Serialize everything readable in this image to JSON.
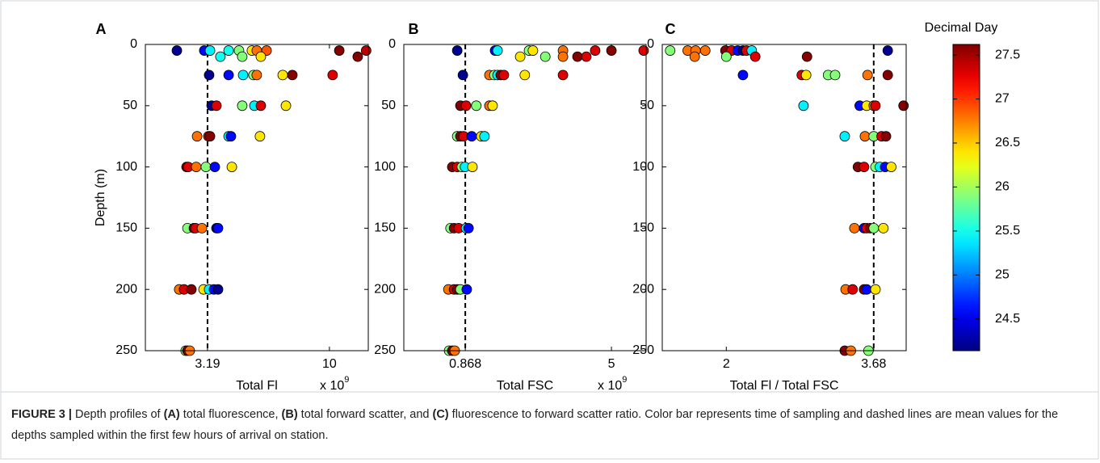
{
  "chart_data": [
    {
      "type": "scatter",
      "panel_label": "A",
      "x_label": "Total Fl",
      "x_multiplier_label": "x 10",
      "x_multiplier_exponent": "9",
      "y_label": "Depth (m)",
      "xlim": [
        -0.28,
        12.17
      ],
      "ylim": [
        0,
        250
      ],
      "y_inverted": true,
      "xticks": [
        3.19,
        10
      ],
      "yticks": [
        0,
        50,
        100,
        150,
        200,
        250
      ],
      "vline": 3.19,
      "colormap": "jet",
      "series": [
        {
          "x": [
            1.48,
            3.01,
            3.33,
            4.37,
            4.95,
            5.67,
            5.94,
            6.49,
            10.55,
            12.05,
            3.91,
            5.13,
            6.17,
            11.58,
            3.28,
            4.37,
            5.18,
            5.76,
            5.94,
            7.39,
            7.93,
            10.18,
            3.42,
            3.69,
            5.13,
            5.81,
            6.17,
            7.57,
            2.61,
            3.24,
            3.33,
            4.37,
            4.5,
            6.12,
            2.02,
            2.11,
            2.56,
            3.1,
            3.6,
            4.55,
            2.07,
            2.43,
            2.52,
            2.88,
            3.69,
            3.78,
            1.61,
            1.88,
            2.29,
            2.97,
            3.28,
            3.55,
            3.78,
            1.97,
            2.07,
            2.2
          ],
          "values": [
            5,
            5,
            5,
            5,
            5,
            5,
            5,
            5,
            5,
            5,
            10,
            10,
            10,
            10,
            25,
            25,
            25,
            25,
            25,
            25,
            25,
            25,
            50,
            50,
            50,
            50,
            50,
            50,
            75,
            75,
            75,
            75,
            75,
            75,
            100,
            100,
            100,
            100,
            100,
            100,
            150,
            150,
            150,
            150,
            150,
            150,
            200,
            200,
            200,
            200,
            200,
            200,
            200,
            250,
            250,
            250
          ],
          "c": [
            24.2,
            24.6,
            25.4,
            25.5,
            25.9,
            26.4,
            26.8,
            26.9,
            27.6,
            27.4,
            25.5,
            25.9,
            26.4,
            27.6,
            24.2,
            24.6,
            25.4,
            25.9,
            26.8,
            26.4,
            27.6,
            27.3,
            24.2,
            27.3,
            25.9,
            25.4,
            27.3,
            26.4,
            26.8,
            27.3,
            27.6,
            25.4,
            24.6,
            26.4,
            27.6,
            27.3,
            26.8,
            25.9,
            24.6,
            26.4,
            25.9,
            27.6,
            27.3,
            26.8,
            24.2,
            24.6,
            26.8,
            27.3,
            27.6,
            26.4,
            25.4,
            24.6,
            24.2,
            25.9,
            27.6,
            26.8
          ]
        }
      ]
    },
    {
      "type": "scatter",
      "panel_label": "B",
      "x_label": "Total FSC",
      "x_multiplier_label": "x 10",
      "x_multiplier_exponent": "9",
      "xlim": [
        -0.87,
        5.98
      ],
      "ylim": [
        0,
        250
      ],
      "y_inverted": true,
      "xticks": [
        0.868,
        5
      ],
      "yticks": [
        0,
        50,
        100,
        150,
        200,
        250
      ],
      "vline": 0.868,
      "colormap": "jet",
      "series": [
        {
          "x": [
            0.64,
            1.71,
            1.78,
            2.67,
            2.78,
            3.63,
            4.54,
            5.0,
            5.91,
            2.42,
            3.13,
            3.63,
            4.04,
            4.29,
            0.8,
            1.55,
            1.69,
            1.78,
            1.87,
            1.96,
            2.55,
            3.63,
            0.73,
            0.89,
            1.18,
            1.55,
            1.64,
            0.64,
            0.73,
            0.82,
            1.05,
            1.32,
            1.41,
            0.5,
            0.64,
            0.77,
            0.86,
            1.07,
            0.45,
            0.55,
            0.68,
            0.89,
            0.96,
            0.39,
            0.55,
            0.64,
            0.73,
            0.91,
            0.41,
            0.5,
            0.57
          ],
          "values": [
            5,
            5,
            5,
            5,
            5,
            5,
            5,
            5,
            5,
            10,
            10,
            10,
            10,
            10,
            25,
            25,
            25,
            25,
            25,
            25,
            25,
            25,
            50,
            50,
            50,
            50,
            50,
            75,
            75,
            75,
            75,
            75,
            75,
            100,
            100,
            100,
            100,
            100,
            150,
            150,
            150,
            150,
            150,
            200,
            200,
            200,
            200,
            200,
            250,
            250,
            250
          ],
          "c": [
            24.2,
            24.6,
            25.4,
            25.9,
            26.4,
            26.8,
            27.3,
            27.6,
            27.3,
            26.4,
            25.9,
            26.8,
            27.6,
            27.3,
            24.2,
            26.8,
            25.9,
            25.4,
            27.6,
            27.3,
            26.4,
            27.3,
            27.6,
            27.3,
            25.9,
            26.8,
            26.4,
            25.9,
            27.6,
            27.3,
            24.6,
            26.4,
            25.4,
            27.6,
            27.3,
            25.9,
            25.4,
            26.4,
            25.9,
            27.6,
            27.3,
            25.4,
            24.6,
            26.8,
            27.3,
            27.6,
            25.9,
            24.6,
            25.9,
            27.6,
            26.8
          ]
        }
      ]
    },
    {
      "type": "scatter",
      "panel_label": "C",
      "x_label": "Total Fl / Total FSC",
      "xlim": [
        1.27,
        4.05
      ],
      "ylim": [
        0,
        250
      ],
      "y_inverted": true,
      "xticks": [
        2,
        3.68
      ],
      "yticks": [
        0,
        50,
        100,
        150,
        200,
        250
      ],
      "vline": 3.68,
      "colormap": "jet",
      "series": [
        {
          "x": [
            1.36,
            1.56,
            1.76,
            1.99,
            2.06,
            2.13,
            2.19,
            2.23,
            2.29,
            1.65,
            3.84,
            1.64,
            2.0,
            2.33,
            2.92,
            2.19,
            2.86,
            2.91,
            3.16,
            3.24,
            3.61,
            3.84,
            2.88,
            3.52,
            3.6,
            3.68,
            3.7,
            4.02,
            3.35,
            3.58,
            3.68,
            3.77,
            3.82,
            3.5,
            3.57,
            3.7,
            3.75,
            3.81,
            3.88,
            3.46,
            3.57,
            3.6,
            3.64,
            3.68,
            3.79,
            3.36,
            3.44,
            3.57,
            3.6,
            3.7,
            3.35,
            3.42,
            3.62
          ],
          "values": [
            5,
            5,
            5,
            5,
            5,
            5,
            5,
            5,
            5,
            5,
            5,
            10,
            10,
            10,
            10,
            25,
            25,
            25,
            25,
            25,
            25,
            25,
            50,
            50,
            50,
            50,
            50,
            50,
            75,
            75,
            75,
            75,
            75,
            100,
            100,
            100,
            100,
            100,
            100,
            150,
            150,
            150,
            150,
            150,
            150,
            200,
            200,
            200,
            200,
            200,
            250,
            250,
            250
          ],
          "c": [
            25.9,
            26.8,
            26.8,
            27.6,
            27.3,
            24.6,
            24.2,
            27.3,
            25.4,
            26.8,
            24.2,
            26.8,
            25.9,
            27.3,
            27.6,
            24.6,
            27.3,
            26.4,
            25.9,
            25.9,
            26.8,
            27.6,
            25.4,
            24.6,
            26.4,
            26.8,
            27.3,
            27.6,
            25.4,
            26.8,
            25.9,
            27.3,
            27.6,
            27.6,
            27.3,
            25.9,
            25.4,
            24.6,
            26.4,
            26.8,
            24.6,
            27.3,
            27.6,
            25.9,
            26.4,
            26.8,
            27.3,
            27.6,
            24.6,
            26.4,
            27.6,
            26.8,
            25.9
          ]
        }
      ]
    },
    {
      "type": "colorbar",
      "title": "Decimal Day",
      "colormap": "jet",
      "clim": [
        24.14,
        27.62
      ],
      "ticks": [
        24.5,
        25,
        25.5,
        26,
        26.5,
        27,
        27.5
      ]
    }
  ],
  "caption": [
    {
      "text": "FIGURE 3 |",
      "bold": true
    },
    {
      "text": " Depth profiles of ",
      "bold": false
    },
    {
      "text": "(A)",
      "bold": true
    },
    {
      "text": " total fluorescence, ",
      "bold": false
    },
    {
      "text": "(B)",
      "bold": true
    },
    {
      "text": " total forward scatter, and ",
      "bold": false
    },
    {
      "text": "(C)",
      "bold": true
    },
    {
      "text": " fluorescence to forward scatter ratio. Color bar represents time of sampling and dashed lines are mean values for the depths sampled within the first few hours of arrival on station.",
      "bold": false
    }
  ]
}
